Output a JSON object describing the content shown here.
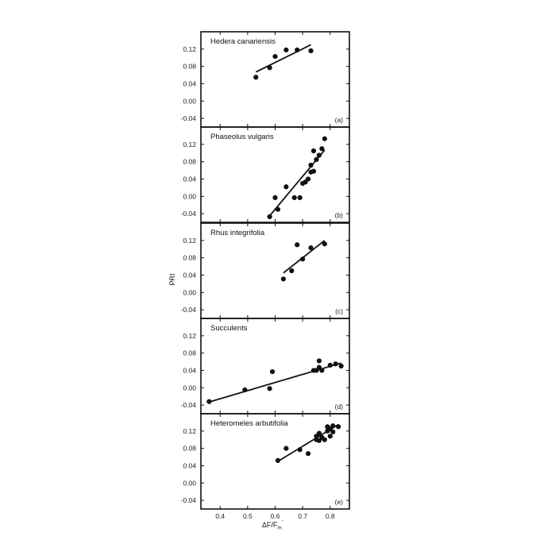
{
  "chart_data": [
    {
      "type": "scatter",
      "title": "Hedera canariensis",
      "tag": "(a)",
      "ylim": [
        -0.06,
        0.16
      ],
      "yticks": [
        "0.12",
        "0.08",
        "0.04",
        "0.00",
        "-0.04"
      ],
      "points": [
        [
          0.53,
          0.055
        ],
        [
          0.58,
          0.077
        ],
        [
          0.6,
          0.103
        ],
        [
          0.64,
          0.118
        ],
        [
          0.68,
          0.118
        ],
        [
          0.73,
          0.116
        ]
      ],
      "fit": [
        [
          0.53,
          0.067
        ],
        [
          0.73,
          0.13
        ]
      ]
    },
    {
      "type": "scatter",
      "title": "Phaseolus vulgaris",
      "tag": "(b)",
      "ylim": [
        -0.06,
        0.16
      ],
      "yticks": [
        "0.12",
        "0.08",
        "0.04",
        "0.00",
        "-0.04"
      ],
      "points": [
        [
          0.58,
          -0.047
        ],
        [
          0.6,
          -0.003
        ],
        [
          0.61,
          -0.03
        ],
        [
          0.64,
          0.022
        ],
        [
          0.67,
          -0.003
        ],
        [
          0.69,
          -0.003
        ],
        [
          0.7,
          0.03
        ],
        [
          0.71,
          0.033
        ],
        [
          0.72,
          0.04
        ],
        [
          0.73,
          0.056
        ],
        [
          0.73,
          0.072
        ],
        [
          0.74,
          0.058
        ],
        [
          0.74,
          0.105
        ],
        [
          0.75,
          0.085
        ],
        [
          0.76,
          0.095
        ],
        [
          0.77,
          0.11
        ],
        [
          0.78,
          0.133
        ]
      ],
      "fit": [
        [
          0.58,
          -0.045
        ],
        [
          0.78,
          0.107
        ]
      ]
    },
    {
      "type": "scatter",
      "title": "Rhus integrifolia",
      "tag": "(c)",
      "ylim": [
        -0.06,
        0.16
      ],
      "yticks": [
        "0.12",
        "0.08",
        "0.04",
        "0.00",
        "-0.04"
      ],
      "points": [
        [
          0.63,
          0.031
        ],
        [
          0.66,
          0.05
        ],
        [
          0.68,
          0.11
        ],
        [
          0.7,
          0.077
        ],
        [
          0.73,
          0.103
        ],
        [
          0.78,
          0.112
        ]
      ],
      "fit": [
        [
          0.63,
          0.045
        ],
        [
          0.78,
          0.12
        ]
      ]
    },
    {
      "type": "scatter",
      "title": "Succulents",
      "tag": "(d)",
      "ylim": [
        -0.06,
        0.16
      ],
      "yticks": [
        "0.12",
        "0.08",
        "0.04",
        "0.00",
        "-0.04"
      ],
      "points": [
        [
          0.36,
          -0.032
        ],
        [
          0.49,
          -0.005
        ],
        [
          0.58,
          -0.002
        ],
        [
          0.59,
          0.037
        ],
        [
          0.74,
          0.04
        ],
        [
          0.75,
          0.04
        ],
        [
          0.76,
          0.047
        ],
        [
          0.76,
          0.062
        ],
        [
          0.77,
          0.04
        ],
        [
          0.8,
          0.052
        ],
        [
          0.82,
          0.055
        ],
        [
          0.84,
          0.05
        ]
      ],
      "fit": [
        [
          0.36,
          -0.033
        ],
        [
          0.84,
          0.057
        ]
      ]
    },
    {
      "type": "scatter",
      "title": "Heteromeles arbutifolia",
      "tag": "(e)",
      "ylim": [
        -0.06,
        0.16
      ],
      "yticks": [
        "0.12",
        "0.08",
        "0.04",
        "0.00",
        "-0.04"
      ],
      "points": [
        [
          0.61,
          0.052
        ],
        [
          0.64,
          0.08
        ],
        [
          0.69,
          0.077
        ],
        [
          0.72,
          0.068
        ],
        [
          0.75,
          0.1
        ],
        [
          0.75,
          0.108
        ],
        [
          0.76,
          0.115
        ],
        [
          0.76,
          0.098
        ],
        [
          0.77,
          0.105
        ],
        [
          0.78,
          0.1
        ],
        [
          0.79,
          0.12
        ],
        [
          0.79,
          0.13
        ],
        [
          0.8,
          0.108
        ],
        [
          0.8,
          0.125
        ],
        [
          0.81,
          0.118
        ],
        [
          0.81,
          0.132
        ],
        [
          0.83,
          0.13
        ]
      ],
      "fit": [
        [
          0.61,
          0.05
        ],
        [
          0.83,
          0.135
        ]
      ]
    }
  ],
  "shared_x": {
    "xlim": [
      0.33,
      0.87
    ],
    "ticks": [
      0.4,
      0.5,
      0.6,
      0.7,
      0.8
    ],
    "tick_labels": [
      "0.4",
      "0.5",
      "0.6",
      "0.7",
      "0.8"
    ],
    "xlabel": "ΔF/F",
    "xlabel_sub": "m",
    "xlabel_sup": "'"
  },
  "shared_y": {
    "ylabel": "PRI"
  }
}
